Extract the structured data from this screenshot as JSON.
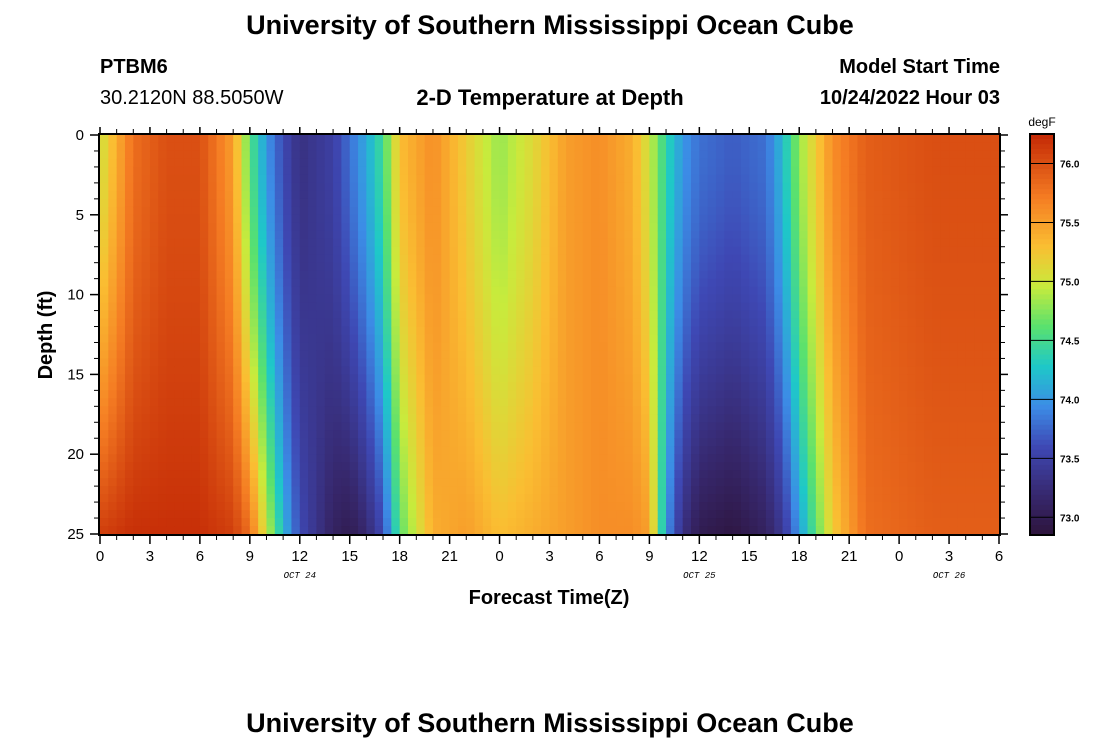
{
  "header": {
    "title": "University of Southern Mississippi Ocean Cube",
    "station_id": "PTBM6",
    "coords": "30.2120N  88.5050W",
    "plot_title": "2-D Temperature at Depth",
    "model_start_label": "Model Start Time",
    "model_start_value": "10/24/2022 Hour 03"
  },
  "footer": {
    "title": "University of Southern Mississippi Ocean Cube"
  },
  "chart_data": {
    "type": "heatmap",
    "title": "2-D Temperature at Depth",
    "xlabel": "Forecast Time(Z)",
    "ylabel": "Depth (ft)",
    "x_start_hour": 0,
    "x_end_hour": 54,
    "x_tick_labels": [
      "0",
      "3",
      "6",
      "9",
      "12",
      "15",
      "18",
      "21",
      "0",
      "3",
      "6",
      "9",
      "12",
      "15",
      "18",
      "21",
      "0",
      "3",
      "6"
    ],
    "x_tick_hours": [
      0,
      3,
      6,
      9,
      12,
      15,
      18,
      21,
      24,
      27,
      30,
      33,
      36,
      39,
      42,
      45,
      48,
      51,
      54
    ],
    "date_labels": [
      {
        "label": "OCT 24",
        "hour": 12
      },
      {
        "label": "OCT 25",
        "hour": 36
      },
      {
        "label": "OCT 26",
        "hour": 51
      }
    ],
    "y_ticks": [
      "0",
      "5",
      "10",
      "15",
      "20",
      "25"
    ],
    "y_tick_values": [
      0,
      5,
      10,
      15,
      20,
      25
    ],
    "ylim": [
      0,
      25
    ],
    "colorbar": {
      "unit": "degF",
      "min": 72.85,
      "max": 76.25,
      "tick_labels": [
        "73.0",
        "73.5",
        "74.0",
        "74.5",
        "75.0",
        "75.5",
        "76.0"
      ],
      "tick_values": [
        73.0,
        73.5,
        74.0,
        74.5,
        75.0,
        75.5,
        76.0
      ]
    },
    "temperature_profile": {
      "description": "Surface (0 ft) and bottom (25 ft) temperature at key forecast hours; intermediate depths interpolated",
      "hours": [
        0,
        2,
        4,
        6,
        8,
        9,
        10,
        11,
        12,
        14,
        15,
        16,
        17,
        18,
        20,
        22,
        24,
        26,
        28,
        30,
        32,
        33,
        34,
        35,
        36,
        38,
        40,
        41,
        42,
        44,
        46,
        50,
        54
      ],
      "surface_degF": [
        75.0,
        75.8,
        76.0,
        76.0,
        75.5,
        74.6,
        74.0,
        73.6,
        73.3,
        73.5,
        73.8,
        74.1,
        74.5,
        75.3,
        75.6,
        75.2,
        74.8,
        75.1,
        75.5,
        75.6,
        75.4,
        75.0,
        74.4,
        74.0,
        73.8,
        73.7,
        73.8,
        74.2,
        74.8,
        75.6,
        75.9,
        76.0,
        76.0
      ],
      "bottom_degF": [
        76.1,
        76.2,
        76.2,
        76.2,
        76.1,
        75.8,
        75.0,
        74.2,
        73.6,
        73.1,
        73.0,
        73.2,
        73.6,
        74.6,
        75.4,
        75.5,
        75.3,
        75.4,
        75.5,
        75.6,
        75.6,
        75.5,
        74.0,
        73.3,
        73.0,
        72.9,
        73.1,
        73.4,
        74.0,
        75.2,
        75.8,
        75.9,
        75.9
      ]
    }
  }
}
